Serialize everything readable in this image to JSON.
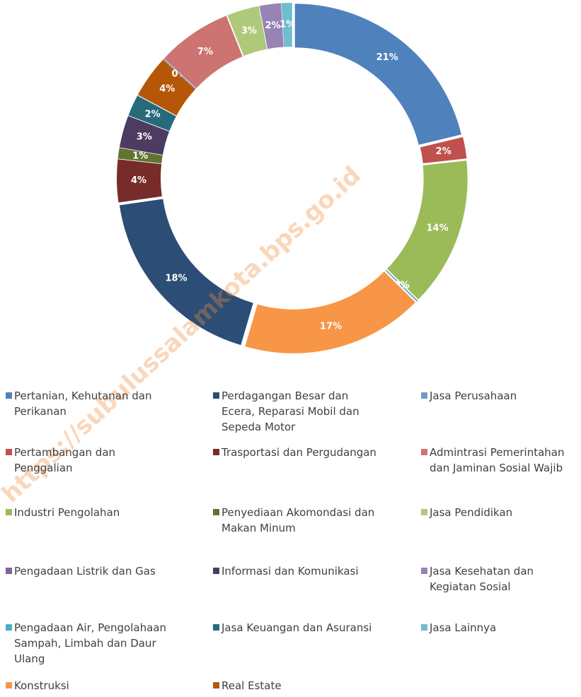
{
  "chart_data": {
    "type": "donut",
    "watermark": "https://subulussalamkota.bps.go.id",
    "categories": [
      "Pertanian, Kehutanan dan Perikanan",
      "Pertambangan dan Penggalian",
      "Industri Pengolahan",
      "Pengadaan Listrik dan Gas",
      "Pengadaan Air, Pengolahaan Sampah, Limbah dan Daur Ulang",
      "Konstruksi",
      "Perdagangan Besar dan Ecera, Reparasi Mobil dan Sepeda Motor",
      "Trasportasi dan Pergudangan",
      "Penyediaan Akomondasi dan Makan Minum",
      "Informasi dan Komunikasi",
      "Jasa Keuangan dan Asuransi",
      "Real Estate",
      "Jasa Perusahaan",
      "Admintrasi Pemerintahan dan Jaminan Sosial Wajib",
      "Jasa Pendidikan",
      "Jasa Kesehatan dan Kegiatan Sosial",
      "Jasa Lainnya"
    ],
    "values": [
      21,
      2,
      14,
      0,
      0,
      17,
      18,
      4,
      1,
      3,
      2,
      4,
      0,
      7,
      3,
      2,
      1
    ],
    "value_labels": [
      "21%",
      "2%",
      "14%",
      "0%",
      "0%",
      "17%",
      "18%",
      "4%",
      "1%",
      "3%",
      "2%",
      "4%",
      "0%",
      "7%",
      "3%",
      "2%",
      "1%"
    ],
    "colors": [
      "#4f81bd",
      "#c0504d",
      "#9bbb59",
      "#8064a2",
      "#4bacc6",
      "#f79646",
      "#2c4d75",
      "#772c2a",
      "#5f7530",
      "#4d3b62",
      "#276a7c",
      "#b65708",
      "#729aca",
      "#cd7371",
      "#afc97a",
      "#9983b5",
      "#6fbdd1"
    ]
  }
}
